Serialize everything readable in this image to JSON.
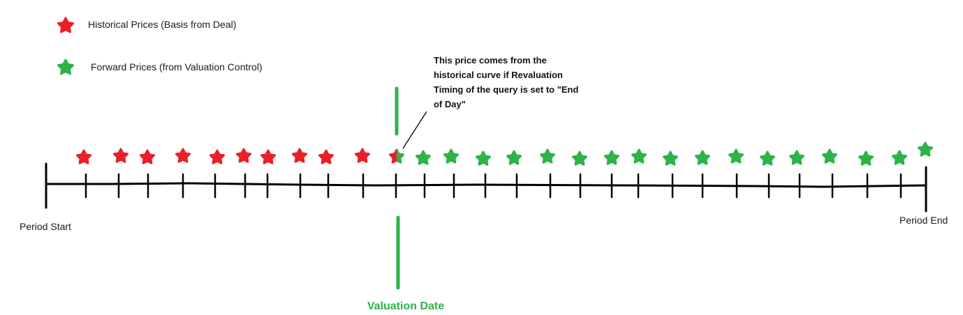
{
  "colors": {
    "historical": "#e8202a",
    "forward": "#2db34a",
    "valuation_line": "#2db34a",
    "axis": "#000000"
  },
  "legend": {
    "historical": {
      "icon": "red-star-icon",
      "label": "Historical Prices (Basis from Deal)"
    },
    "forward": {
      "icon": "green-star-icon",
      "label": "Forward Prices (from Valuation Control)"
    }
  },
  "timeline": {
    "start_label": "Period Start",
    "end_label": "Period End",
    "valuation_label": "Valuation Date"
  },
  "note": {
    "lines": [
      "This price comes from the",
      "historical curve if Revaluation",
      "Timing of the query is set to \"End",
      "of Day\""
    ]
  }
}
